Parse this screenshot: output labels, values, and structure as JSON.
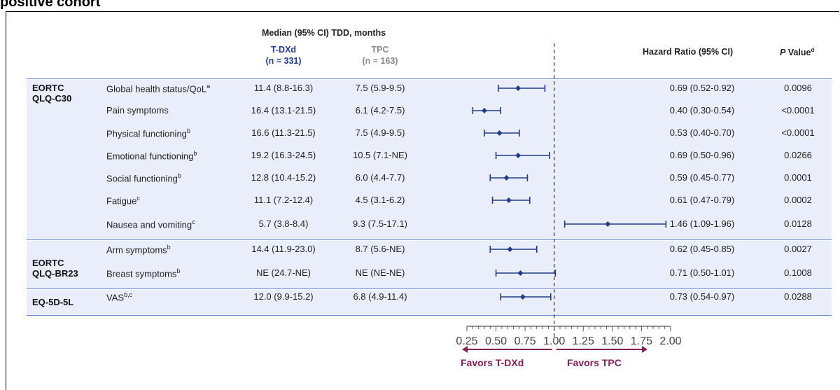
{
  "clipped_title": "positive cohort",
  "header": {
    "median_label": "Median (95% CI) TDD, months",
    "txd_label": "T-DXd",
    "txd_n": "(n = 331)",
    "tpc_label": "TPC",
    "tpc_n": "(n = 163)",
    "hr_label": "Hazard Ratio (95% CI)",
    "p_label_italic": "P",
    "p_label_rest": " Value",
    "p_label_sup": "d"
  },
  "instruments": [
    {
      "line1": "EORTC",
      "line2": "QLQ-C30"
    },
    {
      "line1": "EORTC",
      "line2": "QLQ-BR23"
    },
    {
      "line1": "EQ-5D-5L",
      "line2": ""
    }
  ],
  "rows": [
    {
      "label": "Global health status/QoL",
      "sup": "a",
      "txd": "11.4 (8.8-16.3)",
      "tpc": "7.5 (5.9-9.5)",
      "hr_text": "0.69 (0.52-0.92)",
      "p": "0.0096"
    },
    {
      "label": "Pain symptoms",
      "sup": "",
      "txd": "16.4 (13.1-21.5)",
      "tpc": "6.1 (4.2-7.5)",
      "hr_text": "0.40 (0.30-0.54)",
      "p": "<0.0001"
    },
    {
      "label": "Physical functioning",
      "sup": "b",
      "txd": "16.6 (11.3-21.5)",
      "tpc": "7.5 (4.9-9.5)",
      "hr_text": "0.53 (0.40-0.70)",
      "p": "<0.0001"
    },
    {
      "label": "Emotional  functioning",
      "sup": "b",
      "txd": "19.2 (16.3-24.5)",
      "tpc": "10.5 (7.1-NE)",
      "hr_text": "0.69 (0.50-0.96)",
      "p": "0.0266"
    },
    {
      "label": "Social functioning",
      "sup": "b",
      "txd": "12.8 (10.4-15.2)",
      "tpc": "6.0 (4.4-7.7)",
      "hr_text": "0.59 (0.45-0.77)",
      "p": "0.0001"
    },
    {
      "label": "Fatigue",
      "sup": "c",
      "txd": "11.1 (7.2-12.4)",
      "tpc": "4.5 (3.1-6.2)",
      "hr_text": "0.61 (0.47-0.79)",
      "p": "0.0002"
    },
    {
      "label": "Nausea and vomiting",
      "sup": "c",
      "txd": "5.7 (3.8-8.4)",
      "tpc": "9.3 (7.5-17.1)",
      "hr_text": "1.46 (1.09-1.96)",
      "p": "0.0128"
    },
    {
      "label": "Arm symptoms",
      "sup": "b",
      "txd": "14.4 (11.9-23.0)",
      "tpc": "8.7 (5.6-NE)",
      "hr_text": "0.62 (0.45-0.85)",
      "p": "0.0027"
    },
    {
      "label": "Breast symptoms",
      "sup": "b",
      "txd": "NE (24.7-NE)",
      "tpc": "NE (NE-NE)",
      "hr_text": "0.71 (0.50-1.01)",
      "p": "0.1008"
    },
    {
      "label": "VAS",
      "sup": "b,c",
      "txd": "12.0 (9.9-15.2)",
      "tpc": "6.8 (4.9-11.4)",
      "hr_text": "0.73 (0.54-0.97)",
      "p": "0.0288"
    }
  ],
  "favors": {
    "left": "Favors T-DXd",
    "right": "Favors TPC"
  },
  "chart_data": {
    "type": "scatter",
    "subtype": "forest",
    "categories": [
      "Global health status/QoL",
      "Pain symptoms",
      "Physical functioning",
      "Emotional functioning",
      "Social functioning",
      "Fatigue",
      "Nausea and vomiting",
      "Arm symptoms",
      "Breast symptoms",
      "VAS"
    ],
    "hr": [
      0.69,
      0.4,
      0.53,
      0.69,
      0.59,
      0.61,
      1.46,
      0.62,
      0.71,
      0.73
    ],
    "ci_low": [
      0.52,
      0.3,
      0.4,
      0.5,
      0.45,
      0.47,
      1.09,
      0.45,
      0.5,
      0.54
    ],
    "ci_high": [
      0.92,
      0.54,
      0.7,
      0.96,
      0.77,
      0.79,
      1.96,
      0.85,
      1.01,
      0.97
    ],
    "xlim": [
      0.25,
      2.0
    ],
    "xticks": [
      "0.25",
      "0.50",
      "0.75",
      "1.00",
      "1.25",
      "1.50",
      "1.75",
      "2.00"
    ],
    "reference_line": 1.0,
    "marker_color": "#1f3d8a",
    "reference_color": "#444444",
    "favors_color": "#8a1e57"
  }
}
